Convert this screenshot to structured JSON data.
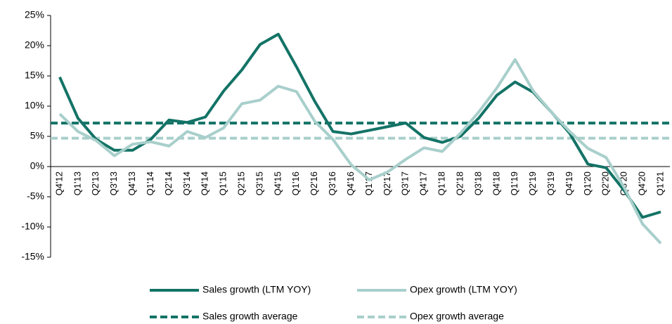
{
  "chart_data": {
    "type": "line",
    "categories": [
      "Q4'12",
      "Q1'13",
      "Q2'13",
      "Q3'13",
      "Q4'13",
      "Q1'14",
      "Q2'14",
      "Q3'14",
      "Q4'14",
      "Q1'15",
      "Q2'15",
      "Q3'15",
      "Q4'15",
      "Q1'16",
      "Q2'16",
      "Q3'16",
      "Q4'16",
      "Q1'17",
      "Q2'17",
      "Q3'17",
      "Q4'17",
      "Q1'18",
      "Q2'18",
      "Q3'18",
      "Q4'18",
      "Q1'19",
      "Q2'19",
      "Q3'19",
      "Q4'19",
      "Q1'20",
      "Q2'20",
      "Q3'20",
      "Q4'20",
      "Q1'21"
    ],
    "series": [
      {
        "name": "Sales growth (LTM YOY)",
        "color": "#137366",
        "values": [
          14.8,
          8,
          4.5,
          2.7,
          2.7,
          4.5,
          7.7,
          7.3,
          8.2,
          12.5,
          16,
          20.2,
          21.9,
          16.5,
          10.8,
          5.8,
          5.4,
          6,
          6.6,
          7.2,
          4.8,
          4,
          5,
          8,
          11.8,
          14,
          12.3,
          9,
          5.5,
          0.4,
          -0.2,
          -4,
          -8.4,
          -7.5
        ]
      },
      {
        "name": "Opex growth (LTM YOY)",
        "color": "#a8cfcb",
        "values": [
          8.7,
          5.8,
          4.3,
          1.8,
          3.7,
          4.1,
          3.4,
          5.8,
          4.8,
          6.4,
          10.4,
          11,
          13.3,
          12.4,
          7.5,
          4.5,
          0.3,
          -2.2,
          -0.9,
          1.2,
          3.1,
          2.5,
          5.5,
          9,
          13,
          17.7,
          12.5,
          9,
          5.8,
          3,
          1.5,
          -3.5,
          -9.5,
          -12.7
        ]
      }
    ],
    "averages": [
      {
        "name": "Sales growth average",
        "color": "#137366",
        "value": 7.2
      },
      {
        "name": "Opex growth average",
        "color": "#a8cfcb",
        "value": 4.7
      }
    ],
    "ylim": [
      -15,
      25
    ],
    "yticks": [
      {
        "value": -15,
        "label": "-15%"
      },
      {
        "value": -10,
        "label": "-10%"
      },
      {
        "value": -5,
        "label": "-5%"
      },
      {
        "value": 0,
        "label": "0%"
      },
      {
        "value": 5,
        "label": "5%"
      },
      {
        "value": 10,
        "label": "10%"
      },
      {
        "value": 15,
        "label": "15%"
      },
      {
        "value": 20,
        "label": "20%"
      },
      {
        "value": 25,
        "label": "25%"
      }
    ]
  }
}
